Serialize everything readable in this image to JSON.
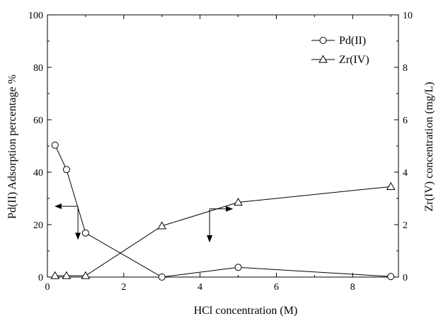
{
  "chart_data": {
    "type": "line",
    "xlabel": "HCl concentration (M)",
    "ylabel_left": "Pd(II) Adsorption percentage %",
    "ylabel_right": "Zr(IV) concentration (mg/L)",
    "xlim": [
      0,
      9.2
    ],
    "ylim_left": [
      0,
      100
    ],
    "ylim_right": [
      0,
      10
    ],
    "xticks": [
      0,
      2,
      4,
      6,
      8
    ],
    "yticks_left": [
      0,
      20,
      40,
      60,
      80,
      100
    ],
    "yticks_right": [
      0,
      2,
      4,
      6,
      8,
      10
    ],
    "grid": false,
    "legend_position": "top-right",
    "series": [
      {
        "name": "Pd(II)",
        "axis": "left",
        "marker": "circle",
        "x": [
          0.2,
          0.5,
          1,
          3,
          5,
          9
        ],
        "y": [
          50.3,
          41,
          16.8,
          0,
          3.7,
          0.2
        ]
      },
      {
        "name": "Zr(IV)",
        "axis": "right",
        "marker": "triangle",
        "x": [
          0.2,
          0.5,
          1,
          3,
          5,
          9
        ],
        "y": [
          0.05,
          0.05,
          0.05,
          1.95,
          2.85,
          3.45
        ]
      }
    ],
    "annotations": [
      {
        "kind": "axis-indicator-arrow",
        "target_axis": "left",
        "x": 0.8,
        "y_left": 27,
        "drop_to_y_left": 14.5
      },
      {
        "kind": "axis-indicator-arrow",
        "target_axis": "right",
        "x": 4.25,
        "y_left": 26,
        "drop_to_y_left": 13.5
      }
    ]
  }
}
